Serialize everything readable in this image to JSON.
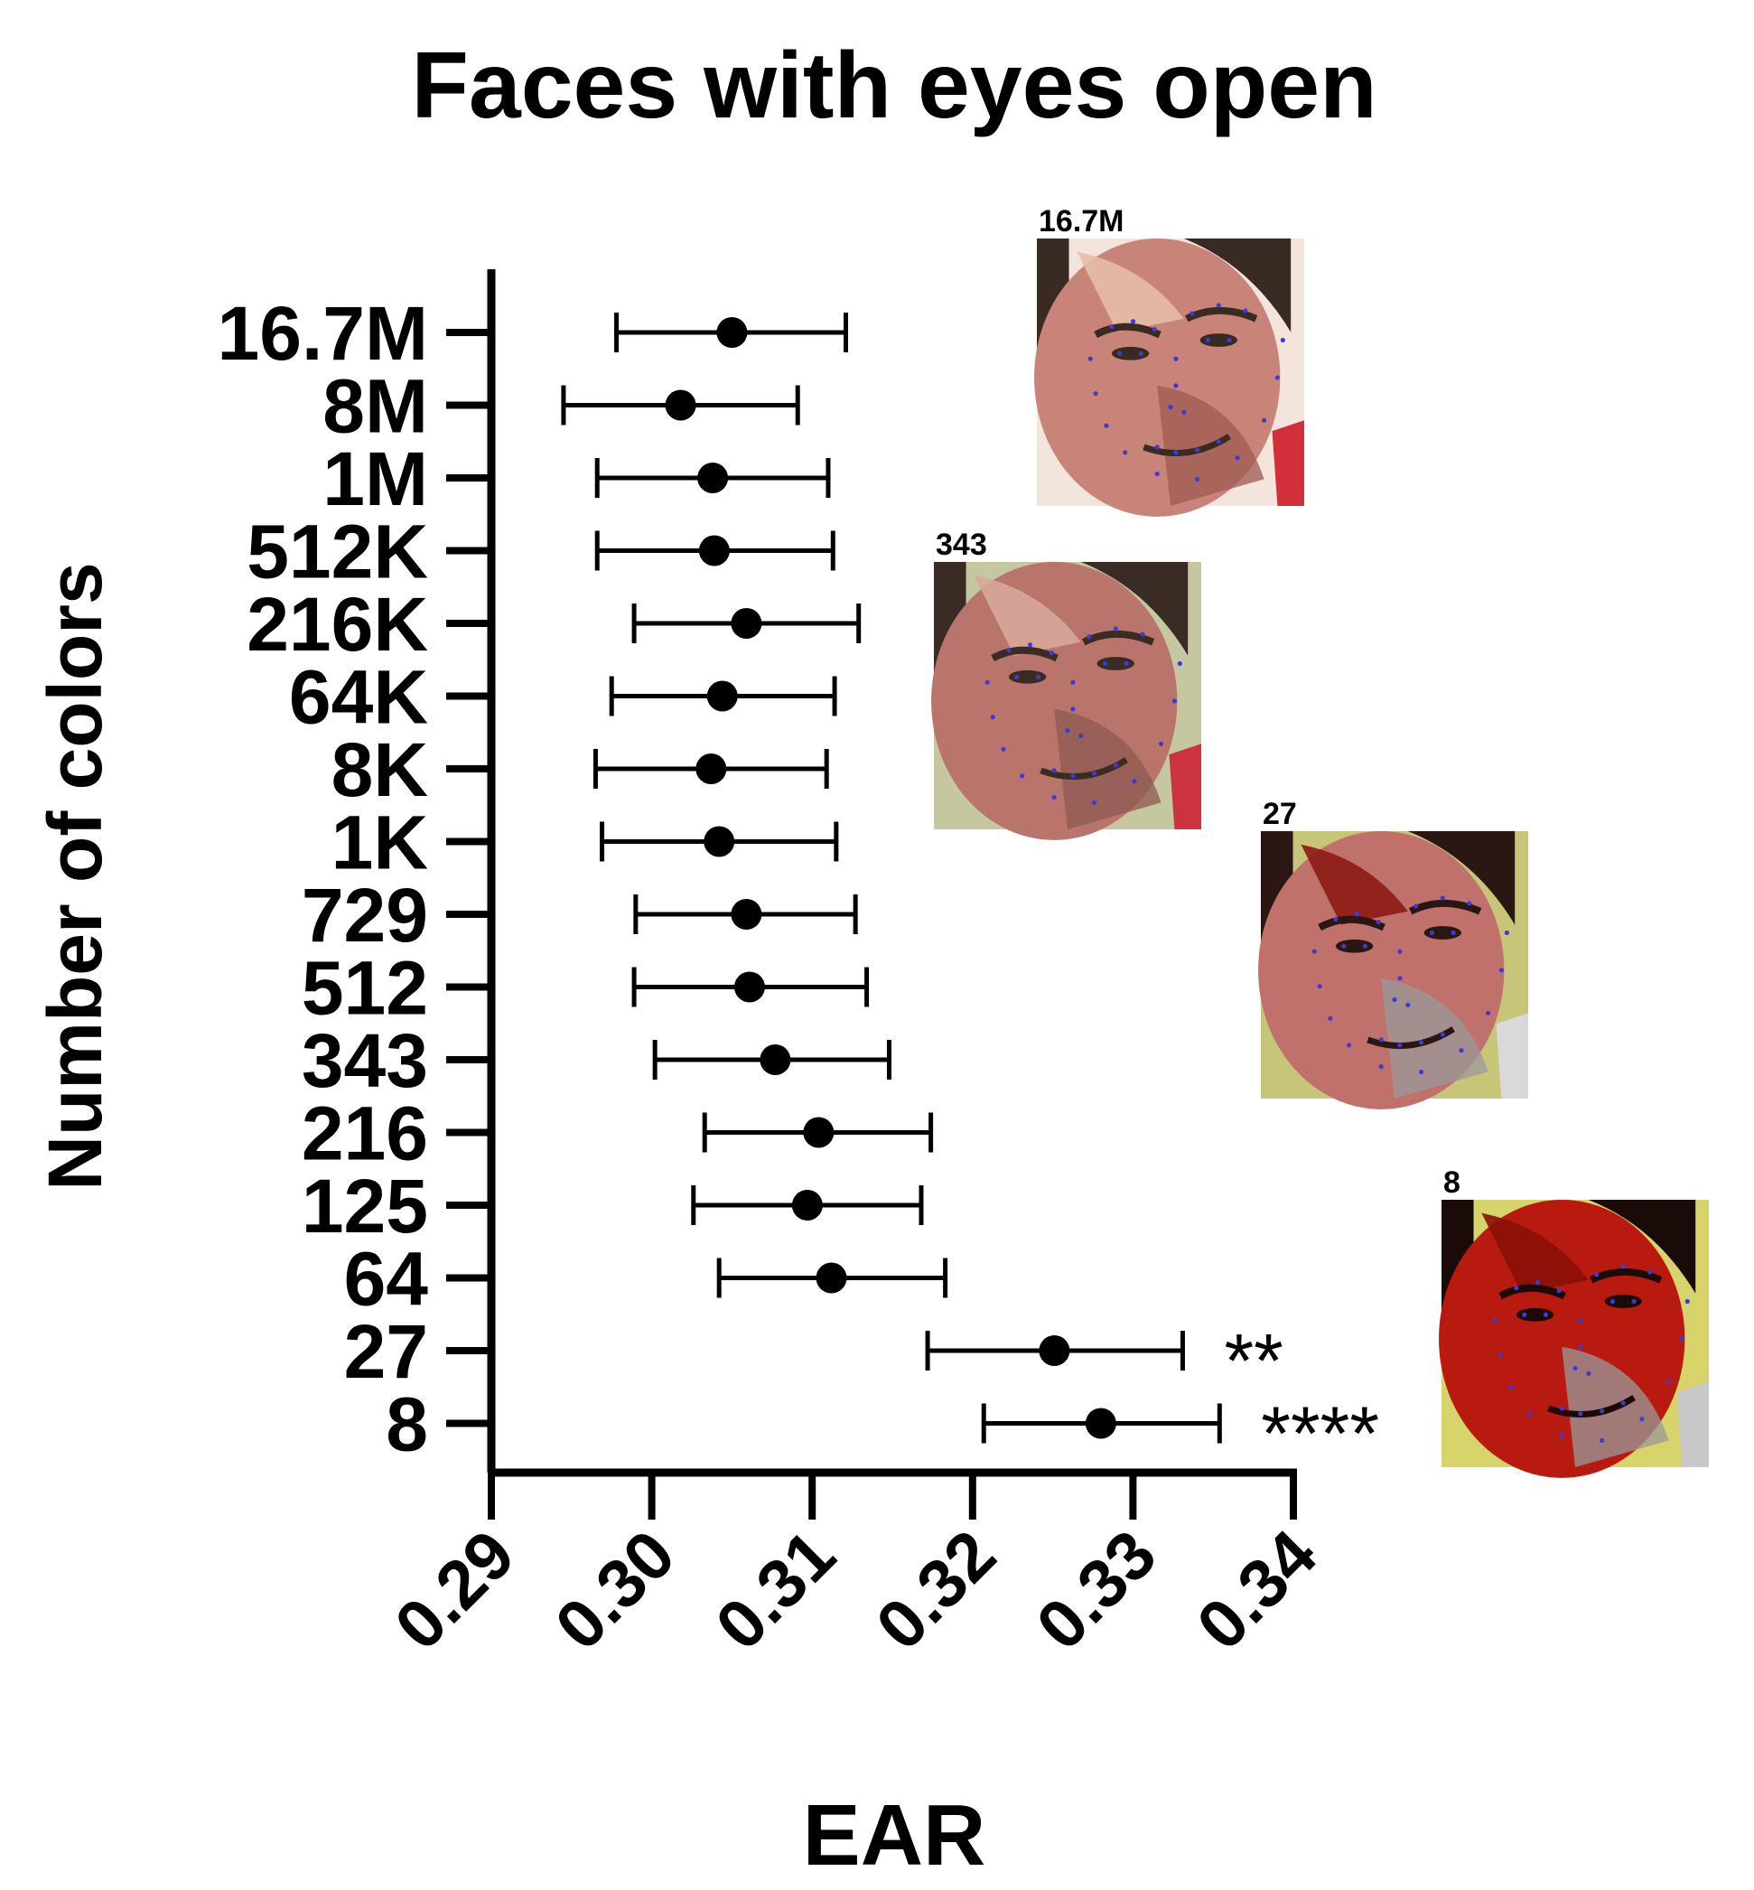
{
  "chart_data": {
    "type": "scatter",
    "subtype": "forest-plot-with-error-bars",
    "title": "Faces with eyes open",
    "xlabel": "EAR",
    "ylabel": "Number of colors",
    "xlim": [
      0.29,
      0.34
    ],
    "xticks": [
      "0.29",
      "0.30",
      "0.31",
      "0.32",
      "0.33",
      "0.34"
    ],
    "grid": false,
    "categories": [
      "16.7M",
      "8M",
      "1M",
      "512K",
      "216K",
      "64K",
      "8K",
      "1K",
      "729",
      "512",
      "343",
      "216",
      "125",
      "64",
      "27",
      "8"
    ],
    "mean": [
      0.305,
      0.3018,
      0.3038,
      0.3039,
      0.3059,
      0.3044,
      0.3037,
      0.3042,
      0.3059,
      0.3061,
      0.3077,
      0.3104,
      0.3097,
      0.3112,
      0.3251,
      0.328
    ],
    "lower": [
      0.2978,
      0.2945,
      0.2966,
      0.2966,
      0.2989,
      0.2975,
      0.2965,
      0.2969,
      0.299,
      0.2989,
      0.3002,
      0.3033,
      0.3026,
      0.3042,
      0.3172,
      0.3207
    ],
    "upper": [
      0.3121,
      0.3091,
      0.311,
      0.3113,
      0.3129,
      0.3114,
      0.3109,
      0.3115,
      0.3127,
      0.3134,
      0.3148,
      0.3174,
      0.3168,
      0.3183,
      0.3331,
      0.3354
    ],
    "annotations": [
      {
        "category": "27",
        "text": "**"
      },
      {
        "category": "8",
        "text": "****"
      }
    ],
    "insets": [
      {
        "label": "16.7M",
        "icon": "face-photo-icon",
        "palette": [
          "#c9847a",
          "#e6bca8",
          "#3a2a24",
          "#9d5b52",
          "#f3e4dc",
          "#d32f3a"
        ]
      },
      {
        "label": "343",
        "icon": "face-photo-icon",
        "palette": [
          "#b9746c",
          "#d7a89a",
          "#3b2b25",
          "#8f5a50",
          "#c4c7a0",
          "#cc3340"
        ]
      },
      {
        "label": "27",
        "icon": "face-photo-icon",
        "palette": [
          "#c0716c",
          "#8c1a14",
          "#2a1612",
          "#9a9a9a",
          "#c7c57a",
          "#d9d9d9"
        ]
      },
      {
        "label": "8",
        "icon": "face-photo-icon",
        "palette": [
          "#b81a10",
          "#8a1008",
          "#1a0a08",
          "#9a9a9a",
          "#d6d46a",
          "#c8c8c8"
        ]
      }
    ]
  }
}
